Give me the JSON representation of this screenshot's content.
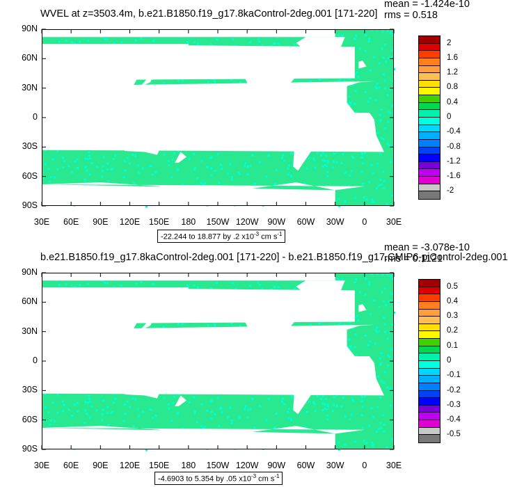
{
  "panels": [
    {
      "title": "WVEL at z=3503.4m, b.e21.B1850.f19_g17.8kaControl-2deg.001 [171-220]",
      "mean": "mean = -1.424e-10",
      "rms": "rms = 0.518",
      "range_text": "-22.244 to 18.877 by .2 x10",
      "range_exp": "-3",
      "range_unit": " cm s",
      "range_unit_exp": "-1",
      "lat_labels": [
        "90N",
        "60N",
        "30N",
        "0",
        "30S",
        "60S",
        "90S"
      ],
      "lon_labels": [
        "30E",
        "60E",
        "90E",
        "120E",
        "150E",
        "180",
        "150W",
        "120W",
        "90W",
        "60W",
        "30W",
        "0",
        "30E"
      ],
      "colorbar_labels": [
        "2",
        "1.6",
        "1.2",
        "0.8",
        "0.4",
        "0",
        "-0.4",
        "-0.8",
        "-1.2",
        "-1.6",
        "-2"
      ],
      "colorbar_colors": [
        "#a00000",
        "#dd0000",
        "#ff3c00",
        "#ff7f1e",
        "#ff9f3c",
        "#ffbf50",
        "#ffe000",
        "#fff800",
        "#40d000",
        "#00d850",
        "#00f0b0",
        "#00ffe0",
        "#00d8ff",
        "#00b0ff",
        "#0080ff",
        "#0040ff",
        "#0000ff",
        "#7800d8",
        "#c000f0",
        "#e000d0",
        "#c8c8c8",
        "#787878"
      ]
    },
    {
      "title": "b.e21.B1850.f19_g17.8kaControl-2deg.001 [171-220] - b.e21.B1850.f19_g17.CMIP6-piControl-2deg.001",
      "mean": "mean = -3.078e-10",
      "rms": "rms = 0.1121",
      "range_text": "-4.6903 to 5.354 by .05 x10",
      "range_exp": "-3",
      "range_unit": " cm s",
      "range_unit_exp": "-1",
      "lat_labels": [
        "90N",
        "60N",
        "30N",
        "0",
        "30S",
        "60S",
        "90S"
      ],
      "lon_labels": [
        "30E",
        "60E",
        "90E",
        "120E",
        "150E",
        "180",
        "150W",
        "120W",
        "90W",
        "60W",
        "30W",
        "0",
        "30E"
      ],
      "colorbar_labels": [
        "0.5",
        "0.4",
        "0.3",
        "0.2",
        "0.1",
        "0",
        "-0.1",
        "-0.2",
        "-0.3",
        "-0.4",
        "-0.5"
      ],
      "colorbar_colors": [
        "#a00000",
        "#dd0000",
        "#ff3c00",
        "#ff7f1e",
        "#ff9f3c",
        "#ffbf50",
        "#ffe000",
        "#fff800",
        "#40d000",
        "#00d850",
        "#00f0b0",
        "#00ffe0",
        "#00d8ff",
        "#00b0ff",
        "#0080ff",
        "#0040ff",
        "#0000ff",
        "#7800d8",
        "#c000f0",
        "#e000d0",
        "#c8c8c8",
        "#787878"
      ]
    }
  ],
  "field_color": "#28e890",
  "field_color_2": "#00ffd8",
  "land_color": "#ffffff"
}
